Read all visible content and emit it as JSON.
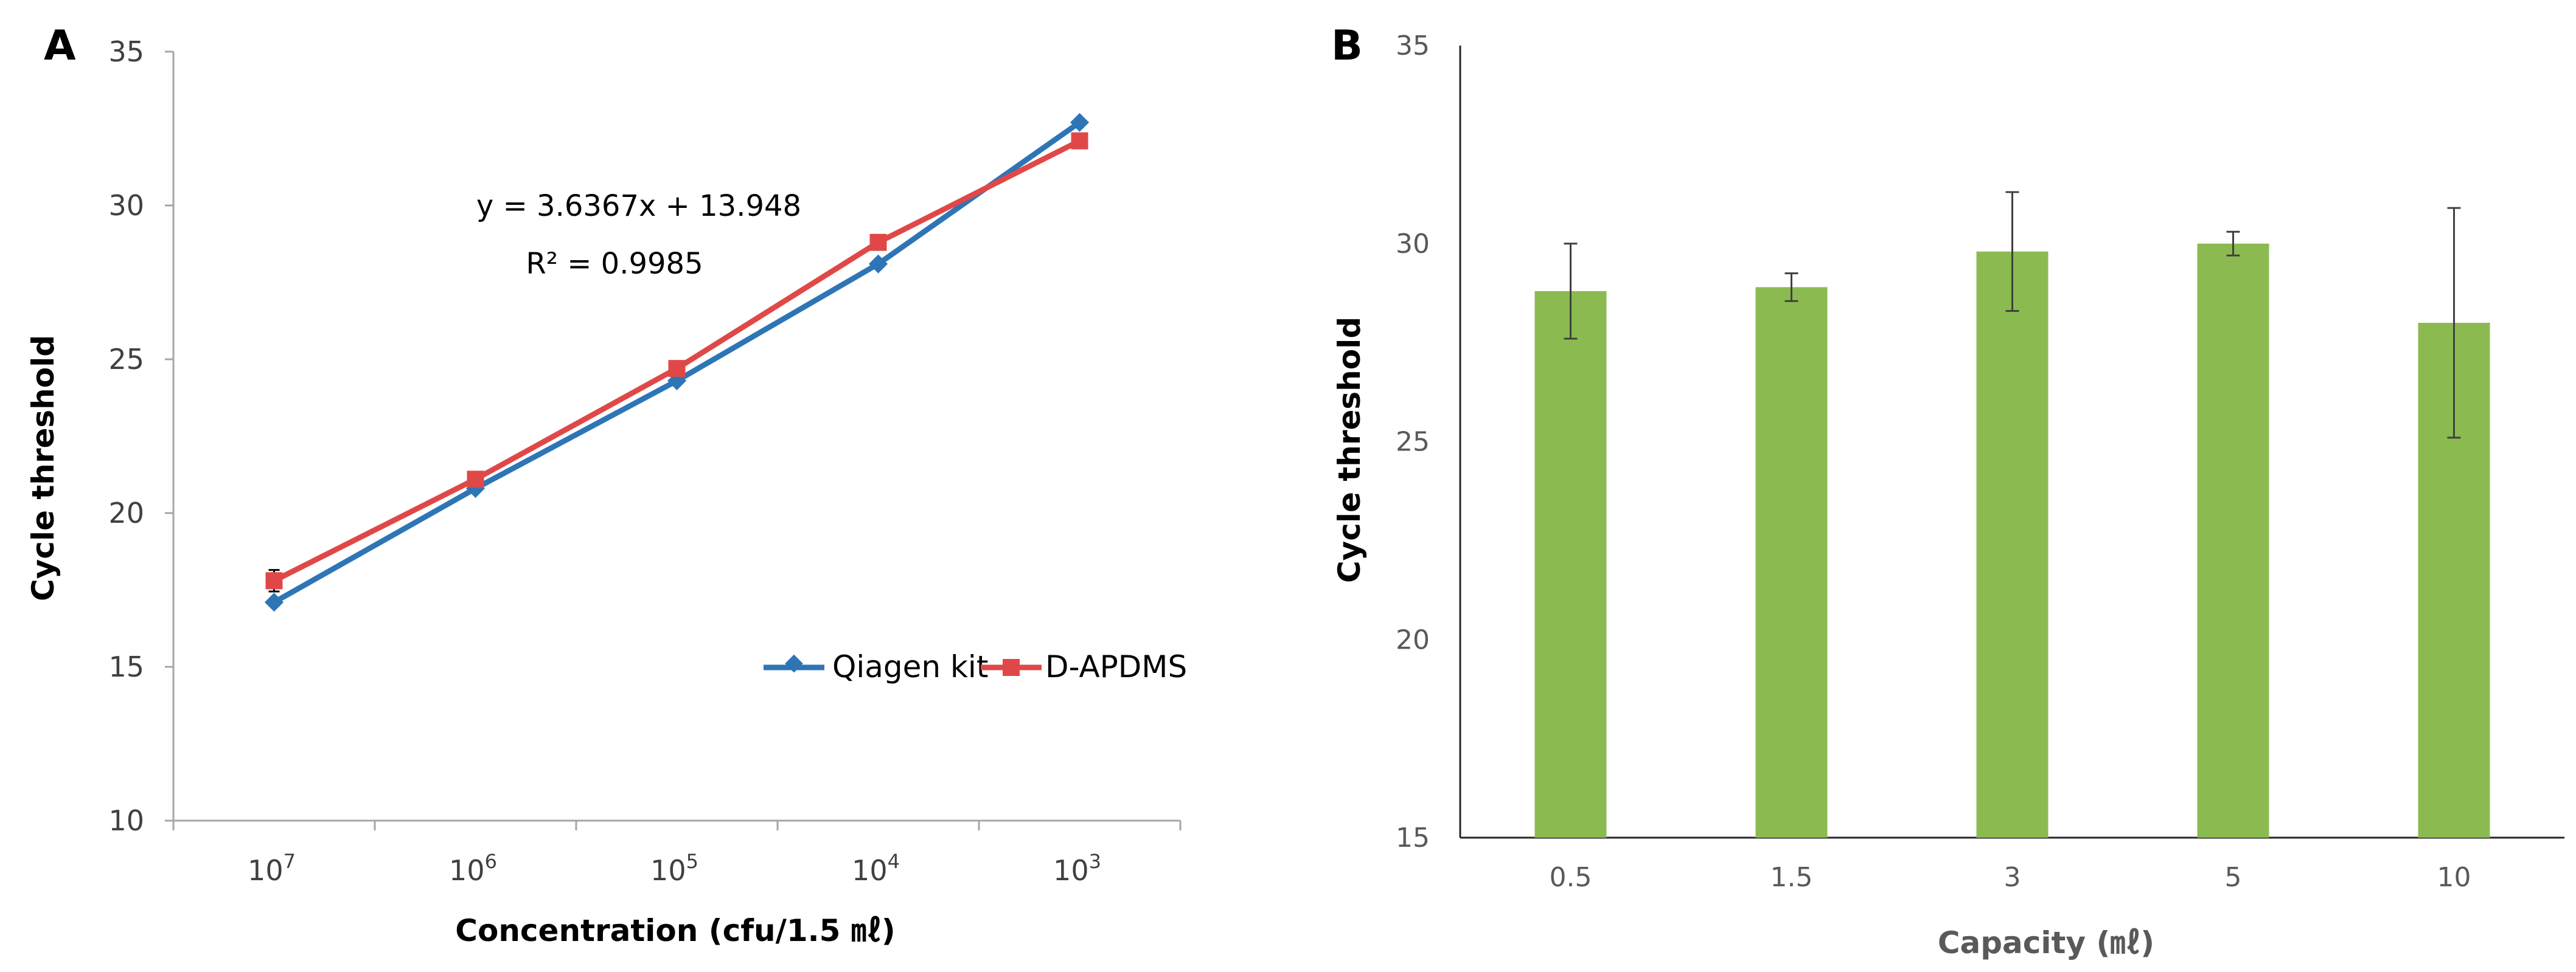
{
  "panels": {
    "a": {
      "letter": "A"
    },
    "b": {
      "letter": "B"
    }
  },
  "chart_data": [
    {
      "type": "line",
      "panel": "A",
      "title": "",
      "xlabel": "Concentration (cfu/1.5 ㎖)",
      "ylabel": "Cycle threshold",
      "categories": [
        {
          "base": "10",
          "exp": "7"
        },
        {
          "base": "10",
          "exp": "6"
        },
        {
          "base": "10",
          "exp": "5"
        },
        {
          "base": "10",
          "exp": "4"
        },
        {
          "base": "10",
          "exp": "3"
        }
      ],
      "ylim": [
        10,
        35
      ],
      "yticks": [
        "10",
        "15",
        "20",
        "25",
        "30",
        "35"
      ],
      "series": [
        {
          "name": "Qiagen kit",
          "color": "#2E75B6",
          "marker": "diamond",
          "values": [
            17.1,
            20.8,
            24.3,
            28.1,
            32.7
          ]
        },
        {
          "name": "D-APDMS",
          "color": "#E04848",
          "marker": "square",
          "values": [
            17.8,
            21.1,
            24.7,
            28.8,
            32.1
          ],
          "error": [
            0.35,
            0.15,
            0.15,
            0.15,
            0.15
          ]
        }
      ],
      "annotation": {
        "equation": "y = 3.6367x + 13.948",
        "r2_label": "R²",
        "r2_value": "= 0.9985"
      },
      "legend": "bottom-right"
    },
    {
      "type": "bar",
      "panel": "B",
      "title": "",
      "xlabel": "Capacity (㎖)",
      "ylabel": "Cycle threshold",
      "categories": [
        "0.5",
        "1.5",
        "3",
        "5",
        "10"
      ],
      "values": [
        28.8,
        28.9,
        29.8,
        30.0,
        28.0
      ],
      "error": [
        1.2,
        0.35,
        1.5,
        0.3,
        2.9
      ],
      "ylim": [
        15,
        35
      ],
      "yticks": [
        "15",
        "20",
        "25",
        "30",
        "35"
      ],
      "color": "#8BBB50"
    }
  ]
}
